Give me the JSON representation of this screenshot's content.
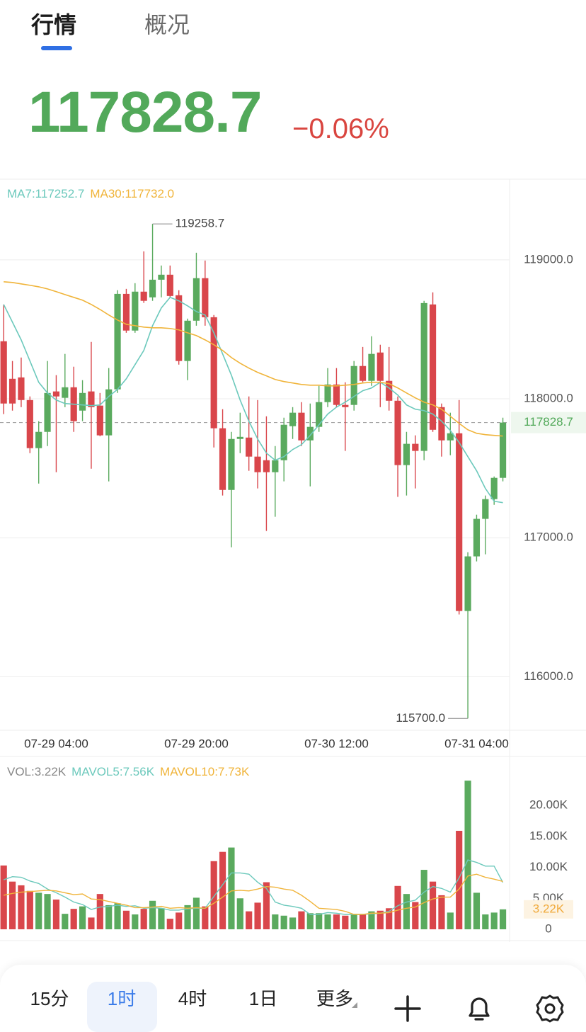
{
  "tabs": [
    "行情",
    "概况"
  ],
  "header": {
    "price": "117828.7",
    "change": "−0.06%"
  },
  "toolbar": [
    "15分",
    "1时",
    "4时",
    "1日",
    "更多"
  ],
  "chart_data": [
    {
      "type": "candlestick",
      "categories": [
        null,
        null,
        null,
        null,
        null,
        null,
        "07-29 04:00",
        null,
        null,
        null,
        null,
        null,
        null,
        null,
        null,
        null,
        null,
        null,
        null,
        null,
        null,
        null,
        "07-29 20:00",
        null,
        null,
        null,
        null,
        null,
        null,
        null,
        null,
        null,
        null,
        null,
        null,
        null,
        null,
        null,
        "07-30 12:00",
        null,
        null,
        null,
        null,
        null,
        null,
        null,
        null,
        null,
        null,
        null,
        null,
        null,
        null,
        null,
        "07-31 04:00",
        null,
        null,
        null
      ],
      "open": [
        118414,
        118144,
        118154,
        117991,
        117645,
        117762,
        118053,
        118007,
        118083,
        117915,
        118053,
        117951,
        117737,
        118068,
        118755,
        118491,
        118771,
        118730,
        118857,
        118893,
        118745,
        118272,
        118562,
        118868,
        118587,
        117788,
        117344,
        117711,
        117721,
        117584,
        117558,
        117472,
        117558,
        117803,
        117900,
        117701,
        117798,
        117976,
        118103,
        117956,
        117956,
        118236,
        118129,
        118333,
        118129,
        117986,
        117523,
        117676,
        117625,
        118679,
        117940,
        117701,
        117752,
        116473,
        116866,
        117136,
        117278,
        117431
      ],
      "high": [
        118679,
        118272,
        118297,
        118017,
        117839,
        118272,
        118170,
        118323,
        118231,
        118134,
        118409,
        118042,
        118221,
        118781,
        118791,
        118832,
        119061,
        119258.7,
        118959,
        118959,
        118781,
        118577,
        119051,
        118995,
        118603,
        117925,
        117762,
        117900,
        118017,
        117991,
        117874,
        117660,
        117864,
        117940,
        117976,
        117966,
        118093,
        118221,
        118221,
        118119,
        118272,
        118373,
        118450,
        118389,
        118373,
        118017,
        117762,
        117737,
        118705,
        118766,
        117966,
        117900,
        117991,
        116896,
        117166,
        117304,
        117441,
        117864
      ],
      "low": [
        117890,
        117915,
        117940,
        117609,
        117390,
        117660,
        117472,
        117940,
        117762,
        117839,
        117497,
        117730,
        117406,
        118042,
        118475,
        118475,
        118690,
        118705,
        118730,
        118730,
        118246,
        118134,
        118526,
        118526,
        117650,
        117304,
        116932,
        117609,
        117482,
        117355,
        117049,
        117151,
        117406,
        117711,
        117660,
        117370,
        117762,
        117940,
        117940,
        117625,
        117915,
        118119,
        118093,
        117940,
        117915,
        117294,
        117304,
        117355,
        117558,
        117762,
        117584,
        117594,
        116448,
        115700,
        116830,
        116881,
        117237,
        117406
      ],
      "close": [
        117966,
        117966,
        117991,
        117645,
        117762,
        118042,
        118017,
        118083,
        117839,
        118042,
        117940,
        117737,
        118068,
        118755,
        118491,
        118771,
        118705,
        118857,
        118893,
        118740,
        118272,
        118562,
        118868,
        118587,
        117788,
        117344,
        117711,
        117726,
        117584,
        117472,
        117472,
        117558,
        117813,
        117900,
        117701,
        117798,
        117976,
        118103,
        117956,
        117940,
        118236,
        118129,
        118323,
        118129,
        117986,
        117523,
        117676,
        117625,
        118689,
        117777,
        117701,
        117752,
        116473,
        116866,
        117136,
        117278,
        117431,
        117828.7
      ],
      "colors": {
        "up": "#5aaa5e",
        "down": "#d9464b"
      },
      "series": [
        {
          "name": "MA7:117252.7",
          "color": "#6cc9bc",
          "values": [
            118679,
            118552,
            118424,
            118272,
            118119,
            118042,
            117991,
            117966,
            117961,
            117956,
            117951,
            117956,
            118017,
            118068,
            118144,
            118246,
            118348,
            118526,
            118654,
            118730,
            118705,
            118669,
            118628,
            118603,
            118475,
            118323,
            118170,
            117991,
            117839,
            117711,
            117609,
            117558,
            117584,
            117635,
            117670,
            117737,
            117813,
            117890,
            117940,
            117976,
            118017,
            118058,
            118078,
            118119,
            118078,
            118027,
            117956,
            117925,
            117915,
            117890,
            117839,
            117772,
            117686,
            117584,
            117482,
            117355,
            117263,
            117252.7
          ]
        },
        {
          "name": "MA30:117732.0",
          "color": "#f0b43a",
          "values": [
            118842,
            118837,
            118827,
            118817,
            118806,
            118791,
            118771,
            118750,
            118730,
            118710,
            118679,
            118643,
            118603,
            118567,
            118536,
            118526,
            118516,
            118511,
            118511,
            118506,
            118496,
            118475,
            118455,
            118424,
            118389,
            118348,
            118297,
            118256,
            118221,
            118190,
            118165,
            118139,
            118124,
            118114,
            118103,
            118098,
            118098,
            118093,
            118093,
            118098,
            118103,
            118114,
            118119,
            118119,
            118109,
            118078,
            118042,
            118007,
            117976,
            117956,
            117925,
            117874,
            117823,
            117777,
            117752,
            117742,
            117737,
            117732.0
          ]
        }
      ],
      "ylim": [
        115620,
        119570
      ],
      "yticks": [
        {
          "value": 116000,
          "label": "116000.0"
        },
        {
          "value": 117000,
          "label": "117000.0"
        },
        {
          "value": 118000,
          "label": "118000.0"
        },
        {
          "value": 119000,
          "label": "119000.0"
        }
      ],
      "grid": true,
      "current": 117828.7,
      "max_label": 119258.7,
      "min_label": {
        "value": 115700,
        "label": "115700.0"
      }
    },
    {
      "type": "bar",
      "name": "VOL:3.22K",
      "values": [
        10.3,
        7.7,
        7.1,
        6.2,
        5.9,
        5.7,
        4.8,
        2.5,
        3.3,
        3.7,
        1.9,
        5.7,
        3.9,
        4.2,
        3.0,
        2.4,
        3.3,
        4.6,
        3.4,
        1.7,
        2.7,
        3.9,
        5.1,
        3.7,
        11.0,
        12.5,
        13.2,
        5.0,
        2.9,
        4.3,
        7.6,
        2.4,
        2.2,
        1.9,
        2.9,
        2.6,
        2.6,
        2.4,
        2.4,
        2.2,
        2.5,
        2.5,
        2.9,
        3.0,
        3.4,
        7.0,
        5.7,
        4.4,
        9.6,
        7.7,
        5.5,
        2.7,
        15.9,
        24.0,
        5.9,
        2.4,
        2.7,
        3.22
      ],
      "name_color": "#888888",
      "series": [
        {
          "name": "MAVOL5:7.56K",
          "color": "#6cc9bc",
          "values": [
            8.0,
            8.5,
            8.4,
            7.8,
            7.4,
            6.5,
            5.9,
            5.2,
            4.4,
            4.0,
            3.2,
            3.6,
            3.7,
            3.9,
            3.7,
            3.8,
            3.4,
            3.5,
            3.4,
            3.1,
            3.1,
            3.3,
            3.4,
            3.4,
            5.3,
            7.2,
            9.1,
            9.1,
            8.9,
            7.6,
            6.6,
            4.4,
            3.9,
            3.7,
            3.4,
            2.4,
            2.4,
            2.7,
            2.6,
            2.4,
            2.4,
            2.4,
            2.5,
            2.6,
            2.9,
            3.8,
            4.4,
            4.7,
            6.0,
            6.9,
            6.6,
            6.0,
            8.3,
            11.2,
            10.8,
            10.2,
            10.2,
            7.56
          ]
        },
        {
          "name": "MAVOL10:7.73K",
          "color": "#f0b43a",
          "values": [
            5.5,
            5.8,
            6.0,
            6.1,
            6.2,
            6.3,
            6.2,
            5.9,
            5.6,
            5.7,
            4.9,
            4.8,
            4.5,
            4.2,
            3.9,
            3.5,
            3.5,
            3.6,
            3.7,
            3.4,
            3.5,
            3.4,
            3.5,
            3.4,
            4.2,
            5.2,
            6.2,
            6.3,
            6.2,
            6.5,
            6.9,
            6.8,
            6.5,
            6.3,
            5.5,
            4.5,
            3.4,
            3.3,
            3.2,
            2.9,
            2.4,
            2.4,
            2.6,
            2.6,
            2.7,
            3.1,
            3.4,
            3.6,
            4.3,
            4.9,
            5.2,
            5.2,
            6.5,
            8.6,
            8.9,
            8.4,
            8.1,
            7.73
          ]
        }
      ],
      "ylim": [
        0,
        27.1
      ],
      "yticks": [
        0,
        {
          "value": 5,
          "label": "5.00K"
        },
        {
          "value": 10,
          "label": "10.00K"
        },
        {
          "value": 15,
          "label": "15.00K"
        },
        {
          "value": 20,
          "label": "20.00K"
        }
      ],
      "current_label": {
        "value": 3.22,
        "label": "3.22K"
      }
    }
  ]
}
